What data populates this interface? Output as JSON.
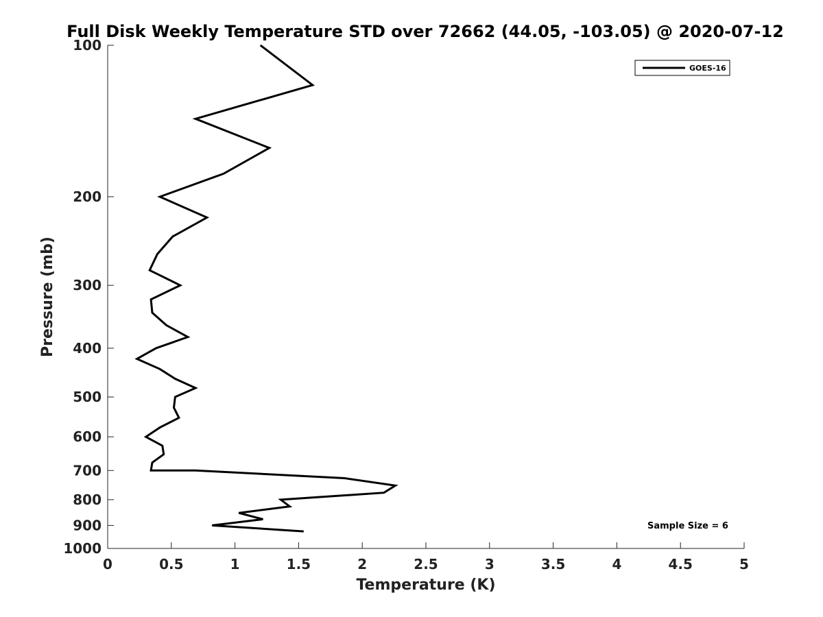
{
  "chart_data": {
    "type": "line",
    "title": "Full Disk Weekly Temperature STD over 72662 (44.05, -103.05) @ 2020-07-12",
    "xlabel": "Temperature (K)",
    "ylabel": "Pressure (mb)",
    "xlim": [
      0,
      5
    ],
    "ylim": [
      100,
      1000
    ],
    "yscale": "log",
    "y_reversed": true,
    "x_ticks": [
      "0",
      "0.5",
      "1",
      "1.5",
      "2",
      "2.5",
      "3",
      "3.5",
      "4",
      "4.5",
      "5"
    ],
    "y_ticks": [
      "100",
      "200",
      "300",
      "400",
      "500",
      "600",
      "700",
      "800",
      "900",
      "1000"
    ],
    "grid": false,
    "legend": {
      "position": "top-right",
      "entries": [
        "GOES-16"
      ]
    },
    "annotation": "Sample Size = 6",
    "line_color": "#000000",
    "series": [
      {
        "name": "GOES-16",
        "x": [
          1.2,
          1.61,
          0.69,
          1.27,
          0.91,
          0.41,
          0.78,
          0.51,
          0.39,
          0.33,
          0.57,
          0.34,
          0.35,
          0.46,
          0.63,
          0.38,
          0.23,
          0.41,
          0.53,
          0.69,
          0.53,
          0.52,
          0.56,
          0.41,
          0.3,
          0.43,
          0.44,
          0.35,
          0.34,
          0.69,
          1.86,
          2.26,
          2.17,
          1.36,
          1.43,
          1.03,
          1.22,
          0.82,
          1.54
        ],
        "y": [
          100,
          120,
          140,
          160,
          180,
          200,
          220,
          240,
          260,
          280,
          300,
          320,
          340,
          360,
          380,
          400,
          420,
          440,
          460,
          480,
          500,
          525,
          550,
          575,
          600,
          625,
          650,
          675,
          700,
          700,
          725,
          750,
          775,
          800,
          825,
          850,
          875,
          900,
          925
        ]
      }
    ]
  }
}
